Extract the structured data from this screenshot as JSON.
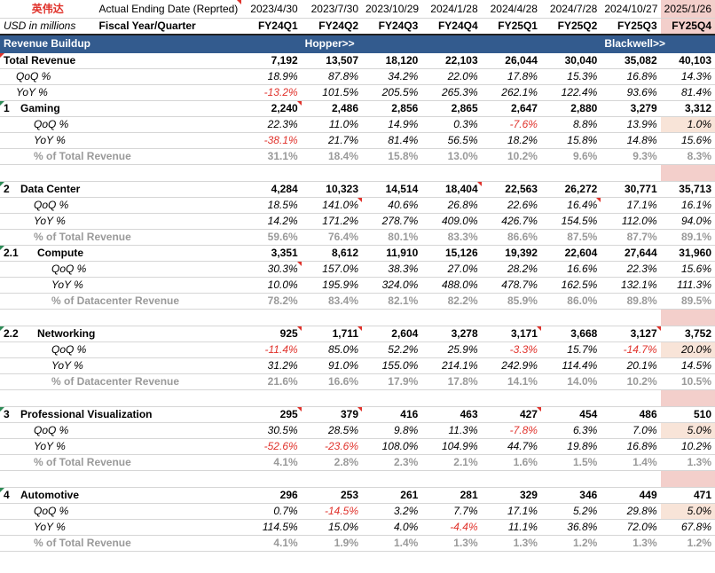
{
  "header": {
    "company": "英伟达",
    "units": "USD in millions",
    "date_row_label": "Actual Ending Date (Reprted)",
    "fq_row_label": "Fiscal Year/Quarter",
    "dates": [
      "2023/4/30",
      "2023/7/30",
      "2023/10/29",
      "2024/1/28",
      "2024/4/28",
      "2024/7/28",
      "2024/10/27",
      "2025/1/26"
    ],
    "quarters": [
      "FY24Q1",
      "FY24Q2",
      "FY24Q3",
      "FY24Q4",
      "FY25Q1",
      "FY25Q2",
      "FY25Q3",
      "FY25Q4"
    ]
  },
  "band": {
    "label": "Revenue Buildup",
    "hopper": "Hopper>>",
    "blackwell": "Blackwell>>"
  },
  "rows": {
    "total": {
      "num": "",
      "label": "Total Revenue",
      "values": [
        "7,192",
        "13,507",
        "18,120",
        "22,103",
        "26,044",
        "30,040",
        "35,082",
        "40,103"
      ]
    },
    "total_qoq": {
      "label": "QoQ %",
      "values": [
        "18.9%",
        "87.8%",
        "34.2%",
        "22.0%",
        "17.8%",
        "15.3%",
        "16.8%",
        "14.3%"
      ]
    },
    "total_yoy": {
      "label": "YoY %",
      "values": [
        "-13.2%",
        "101.5%",
        "205.5%",
        "265.3%",
        "262.1%",
        "122.4%",
        "93.6%",
        "81.4%"
      ]
    },
    "gaming": {
      "num": "1",
      "label": "Gaming",
      "values": [
        "2,240",
        "2,486",
        "2,856",
        "2,865",
        "2,647",
        "2,880",
        "3,279",
        "3,312"
      ]
    },
    "gaming_qoq": {
      "label": "QoQ %",
      "values": [
        "22.3%",
        "11.0%",
        "14.9%",
        "0.3%",
        "-7.6%",
        "8.8%",
        "13.9%",
        "1.0%"
      ]
    },
    "gaming_yoy": {
      "label": "YoY %",
      "values": [
        "-38.1%",
        "21.7%",
        "81.4%",
        "56.5%",
        "18.2%",
        "15.8%",
        "14.8%",
        "15.6%"
      ]
    },
    "gaming_pct": {
      "label": "% of Total Revenue",
      "values": [
        "31.1%",
        "18.4%",
        "15.8%",
        "13.0%",
        "10.2%",
        "9.6%",
        "9.3%",
        "8.3%"
      ]
    },
    "dc": {
      "num": "2",
      "label": "Data Center",
      "values": [
        "4,284",
        "10,323",
        "14,514",
        "18,404",
        "22,563",
        "26,272",
        "30,771",
        "35,713"
      ]
    },
    "dc_qoq": {
      "label": "QoQ %",
      "values": [
        "18.5%",
        "141.0%",
        "40.6%",
        "26.8%",
        "22.6%",
        "16.4%",
        "17.1%",
        "16.1%"
      ]
    },
    "dc_yoy": {
      "label": "YoY %",
      "values": [
        "14.2%",
        "171.2%",
        "278.7%",
        "409.0%",
        "426.7%",
        "154.5%",
        "112.0%",
        "94.0%"
      ]
    },
    "dc_pct": {
      "label": "% of Total Revenue",
      "values": [
        "59.6%",
        "76.4%",
        "80.1%",
        "83.3%",
        "86.6%",
        "87.5%",
        "87.7%",
        "89.1%"
      ]
    },
    "compute": {
      "num": "2.1",
      "label": "Compute",
      "values": [
        "3,351",
        "8,612",
        "11,910",
        "15,126",
        "19,392",
        "22,604",
        "27,644",
        "31,960"
      ]
    },
    "compute_qoq": {
      "label": "QoQ %",
      "values": [
        "30.3%",
        "157.0%",
        "38.3%",
        "27.0%",
        "28.2%",
        "16.6%",
        "22.3%",
        "15.6%"
      ]
    },
    "compute_yoy": {
      "label": "YoY %",
      "values": [
        "10.0%",
        "195.9%",
        "324.0%",
        "488.0%",
        "478.7%",
        "162.5%",
        "132.1%",
        "111.3%"
      ]
    },
    "compute_pct": {
      "label": "% of Datacenter Revenue",
      "values": [
        "78.2%",
        "83.4%",
        "82.1%",
        "82.2%",
        "85.9%",
        "86.0%",
        "89.8%",
        "89.5%"
      ]
    },
    "net": {
      "num": "2.2",
      "label": "Networking",
      "values": [
        "925",
        "1,711",
        "2,604",
        "3,278",
        "3,171",
        "3,668",
        "3,127",
        "3,752"
      ]
    },
    "net_qoq": {
      "label": "QoQ %",
      "values": [
        "-11.4%",
        "85.0%",
        "52.2%",
        "25.9%",
        "-3.3%",
        "15.7%",
        "-14.7%",
        "20.0%"
      ]
    },
    "net_yoy": {
      "label": "YoY %",
      "values": [
        "31.2%",
        "91.0%",
        "155.0%",
        "214.1%",
        "242.9%",
        "114.4%",
        "20.1%",
        "14.5%"
      ]
    },
    "net_pct": {
      "label": "% of Datacenter Revenue",
      "values": [
        "21.6%",
        "16.6%",
        "17.9%",
        "17.8%",
        "14.1%",
        "14.0%",
        "10.2%",
        "10.5%"
      ]
    },
    "pv": {
      "num": "3",
      "label": "Professional Visualization",
      "values": [
        "295",
        "379",
        "416",
        "463",
        "427",
        "454",
        "486",
        "510"
      ]
    },
    "pv_qoq": {
      "label": "QoQ %",
      "values": [
        "30.5%",
        "28.5%",
        "9.8%",
        "11.3%",
        "-7.8%",
        "6.3%",
        "7.0%",
        "5.0%"
      ]
    },
    "pv_yoy": {
      "label": "YoY %",
      "values": [
        "-52.6%",
        "-23.6%",
        "108.0%",
        "104.9%",
        "44.7%",
        "19.8%",
        "16.8%",
        "10.2%"
      ]
    },
    "pv_pct": {
      "label": "% of Total Revenue",
      "values": [
        "4.1%",
        "2.8%",
        "2.3%",
        "2.1%",
        "1.6%",
        "1.5%",
        "1.4%",
        "1.3%"
      ]
    },
    "auto": {
      "num": "4",
      "label": "Automotive",
      "values": [
        "296",
        "253",
        "261",
        "281",
        "329",
        "346",
        "449",
        "471"
      ]
    },
    "auto_qoq": {
      "label": "QoQ %",
      "values": [
        "0.7%",
        "-14.5%",
        "3.2%",
        "7.7%",
        "17.1%",
        "5.2%",
        "29.8%",
        "5.0%"
      ]
    },
    "auto_yoy": {
      "label": "YoY %",
      "values": [
        "114.5%",
        "15.0%",
        "4.0%",
        "-4.4%",
        "11.1%",
        "36.8%",
        "72.0%",
        "67.8%"
      ]
    },
    "auto_pct": {
      "label": "% of Total Revenue",
      "values": [
        "4.1%",
        "1.9%",
        "1.4%",
        "1.3%",
        "1.3%",
        "1.2%",
        "1.3%",
        "1.2%"
      ]
    }
  },
  "colors": {
    "band": "#335b8e",
    "highlight": "#f3cfcb",
    "negative": "#e0322b",
    "muted": "#9a9a9a"
  }
}
